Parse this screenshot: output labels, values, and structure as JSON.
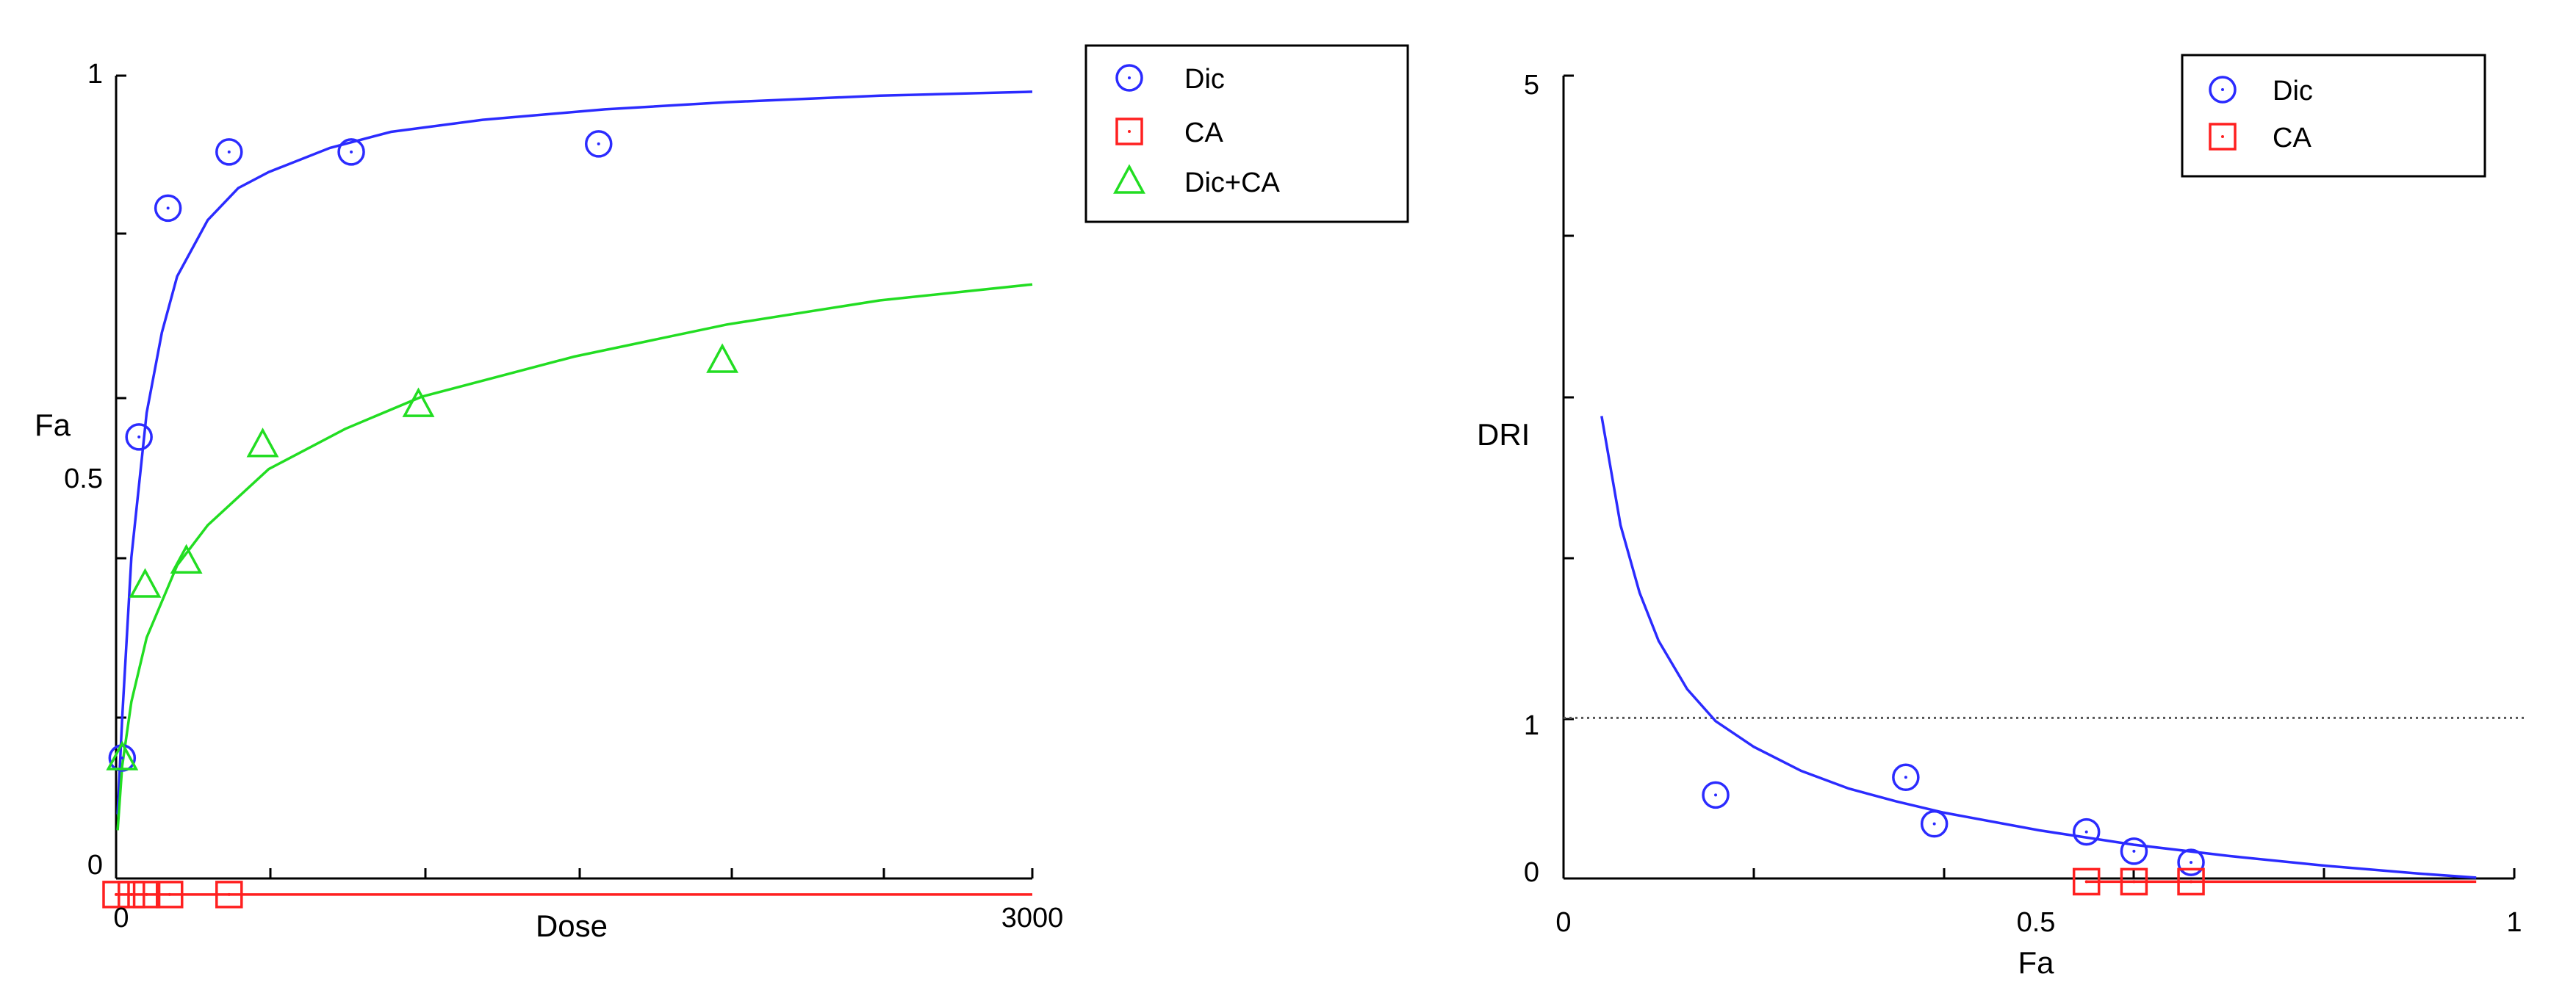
{
  "chart_data": [
    {
      "type": "scatter",
      "xlabel": "Dose",
      "ylabel": "Fa",
      "xlim": [
        0,
        3000
      ],
      "ylim": [
        0,
        1
      ],
      "x_ticks": [
        "0",
        "3000"
      ],
      "y_ticks": [
        "0",
        "0.5",
        "1"
      ],
      "legend": {
        "placement": "top-right",
        "entries": [
          "Dic",
          "CA",
          "Dic+CA"
        ]
      },
      "series": [
        {
          "name": "Dic",
          "color": "#2b2bff",
          "marker": "circle",
          "points": [
            [
              20,
              0.15
            ],
            [
              75,
              0.55
            ],
            [
              170,
              0.835
            ],
            [
              370,
              0.905
            ],
            [
              770,
              0.905
            ],
            [
              1580,
              0.915
            ]
          ],
          "curve": [
            [
              5,
              0.08
            ],
            [
              20,
              0.2
            ],
            [
              50,
              0.4
            ],
            [
              100,
              0.58
            ],
            [
              150,
              0.68
            ],
            [
              200,
              0.75
            ],
            [
              300,
              0.82
            ],
            [
              400,
              0.86
            ],
            [
              500,
              0.88
            ],
            [
              700,
              0.91
            ],
            [
              900,
              0.93
            ],
            [
              1200,
              0.945
            ],
            [
              1600,
              0.958
            ],
            [
              2000,
              0.967
            ],
            [
              2500,
              0.975
            ],
            [
              3000,
              0.98
            ]
          ]
        },
        {
          "name": "CA",
          "color": "#ff2020",
          "marker": "square",
          "points": [
            [
              0,
              -0.02
            ],
            [
              50,
              -0.02
            ],
            [
              100,
              -0.02
            ],
            [
              175,
              -0.02
            ],
            [
              370,
              -0.02
            ]
          ],
          "curve": [
            [
              0,
              -0.02
            ],
            [
              3000,
              -0.02
            ]
          ]
        },
        {
          "name": "Dic+CA",
          "color": "#22dd22",
          "marker": "triangle",
          "points": [
            [
              20,
              0.15
            ],
            [
              95,
              0.365
            ],
            [
              230,
              0.395
            ],
            [
              480,
              0.54
            ],
            [
              990,
              0.59
            ],
            [
              1985,
              0.645
            ]
          ],
          "curve": [
            [
              5,
              0.06
            ],
            [
              20,
              0.14
            ],
            [
              50,
              0.22
            ],
            [
              100,
              0.3
            ],
            [
              200,
              0.39
            ],
            [
              300,
              0.44
            ],
            [
              500,
              0.51
            ],
            [
              750,
              0.56
            ],
            [
              1000,
              0.6
            ],
            [
              1500,
              0.65
            ],
            [
              2000,
              0.69
            ],
            [
              2500,
              0.72
            ],
            [
              3000,
              0.74
            ]
          ]
        }
      ]
    },
    {
      "type": "scatter",
      "xlabel": "Fa",
      "ylabel": "DRI",
      "xlim": [
        0,
        1
      ],
      "ylim": [
        0,
        5
      ],
      "x_ticks": [
        "0",
        "0.5",
        "1"
      ],
      "y_ticks": [
        "0",
        "1",
        "5"
      ],
      "reference_line": {
        "y": 1,
        "style": "dotted"
      },
      "legend": {
        "placement": "top-right",
        "entries": [
          "Dic",
          "CA"
        ]
      },
      "series": [
        {
          "name": "Dic",
          "color": "#2b2bff",
          "marker": "circle",
          "points": [
            [
              0.16,
              0.52
            ],
            [
              0.36,
              0.63
            ],
            [
              0.39,
              0.34
            ],
            [
              0.55,
              0.29
            ],
            [
              0.6,
              0.17
            ],
            [
              0.66,
              0.1
            ]
          ],
          "curve": [
            [
              0.04,
              2.88
            ],
            [
              0.06,
              2.2
            ],
            [
              0.08,
              1.78
            ],
            [
              0.1,
              1.48
            ],
            [
              0.13,
              1.18
            ],
            [
              0.16,
              0.98
            ],
            [
              0.2,
              0.82
            ],
            [
              0.25,
              0.67
            ],
            [
              0.3,
              0.56
            ],
            [
              0.35,
              0.48
            ],
            [
              0.4,
              0.41
            ],
            [
              0.5,
              0.3
            ],
            [
              0.6,
              0.21
            ],
            [
              0.7,
              0.14
            ],
            [
              0.8,
              0.08
            ],
            [
              0.9,
              0.03
            ],
            [
              0.96,
              0.005
            ]
          ]
        },
        {
          "name": "CA",
          "color": "#ff2020",
          "marker": "square",
          "points": [
            [
              0.55,
              -0.02
            ],
            [
              0.6,
              -0.02
            ],
            [
              0.66,
              -0.02
            ]
          ],
          "curve": [
            [
              0.55,
              -0.02
            ],
            [
              0.96,
              -0.02
            ]
          ]
        }
      ]
    }
  ]
}
